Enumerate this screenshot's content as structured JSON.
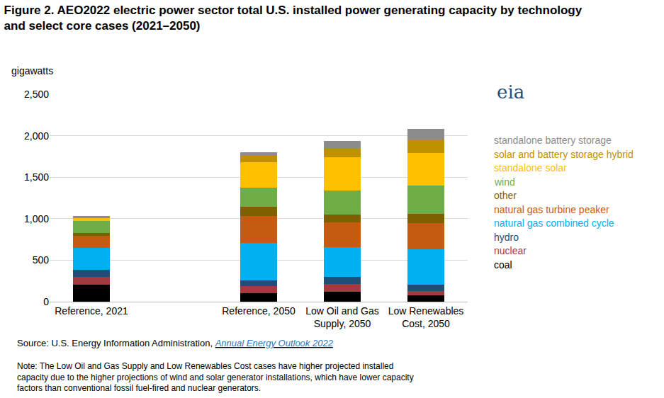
{
  "chart_data": {
    "type": "bar",
    "stacked": true,
    "title": [
      "Figure 2. AEO2022 electric power sector total U.S. installed power generating capacity by technology",
      "and select core cases (2021–2050)"
    ],
    "ylabel": "gigawatts",
    "logo": "eia",
    "source": "Source: U.S. Energy Information Administration,",
    "source_link": "Annual Energy Outlook 2022",
    "note": [
      "Note: The Low Oil and Gas Supply and Low Renewables Cost cases have higher projected installed",
      "capacity due to the higher projections of wind and solar generator installations, which have lower capacity",
      "factors than conventional fossil fuel-fired and nuclear generators."
    ],
    "categories": [
      "Reference, 2021",
      null,
      "Reference, 2050",
      "Low Oil and Gas Supply, 2050",
      "Low Renewables Cost, 2050"
    ],
    "ylim": [
      0,
      2500
    ],
    "yticks": [
      0,
      {
        "value": 500,
        "label": "500"
      },
      {
        "value": 1000,
        "label": "1,000"
      },
      {
        "value": 1500,
        "label": "1,500"
      },
      {
        "value": 2000,
        "label": "2,000"
      },
      {
        "value": 2500,
        "label": "2,500"
      }
    ],
    "grid": true,
    "series": [
      {
        "name": "coal",
        "color": "#000000",
        "values": [
          205,
          null,
          100,
          120,
          75
        ]
      },
      {
        "name": "nuclear",
        "color": "#a33a3f",
        "values": [
          95,
          null,
          85,
          95,
          50
        ]
      },
      {
        "name": "hydro",
        "color": "#1f4e79",
        "values": [
          80,
          null,
          75,
          80,
          80
        ]
      },
      {
        "name": "natural gas combined cycle",
        "color": "#00b0f0",
        "values": [
          270,
          null,
          450,
          365,
          425
        ]
      },
      {
        "name": "natural gas turbine peaker",
        "color": "#c55a11",
        "values": [
          140,
          null,
          325,
          295,
          320
        ]
      },
      {
        "name": "other",
        "color": "#7f6000",
        "values": [
          40,
          null,
          105,
          95,
          105
        ]
      },
      {
        "name": "wind",
        "color": "#70ad47",
        "values": [
          140,
          null,
          230,
          290,
          345
        ]
      },
      {
        "name": "standalone solar",
        "color": "#ffc000",
        "values": [
          40,
          null,
          310,
          400,
          395
        ]
      },
      {
        "name": "solar and battery storage hybrid",
        "color": "#bf9000",
        "values": [
          10,
          null,
          90,
          100,
          155
        ]
      },
      {
        "name": "standalone battery storage",
        "color": "#8c8c8c",
        "values": [
          5,
          null,
          30,
          100,
          135
        ]
      }
    ]
  }
}
